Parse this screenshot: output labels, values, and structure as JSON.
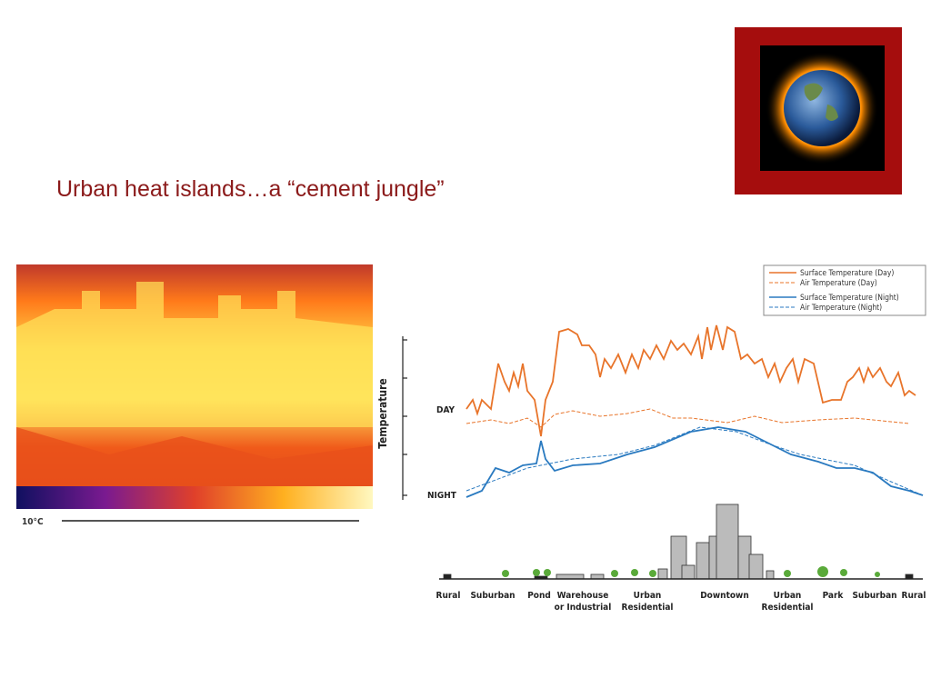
{
  "slide": {
    "title": "Urban heat islands…a “cement jungle”"
  },
  "thermal_image": {
    "scale_label": "10°C"
  },
  "diagram": {
    "legend": [
      "Surface Temperature (Day)",
      "Air Temperature  (Day)",
      "Surface Temperature (Night)",
      "Air Temperature (Night)"
    ],
    "y_axis_label": "Temperature",
    "day_label": "DAY",
    "night_label": "NIGHT",
    "zones": [
      [
        "Rural"
      ],
      [
        "Suburban"
      ],
      [
        "Pond"
      ],
      [
        "Warehouse",
        "or Industrial"
      ],
      [
        "Urban",
        "Residential"
      ],
      [
        "Downtown"
      ],
      [
        "Urban",
        "Residential"
      ],
      [
        "Park"
      ],
      [
        "Suburban"
      ],
      [
        "Rural"
      ]
    ]
  }
}
